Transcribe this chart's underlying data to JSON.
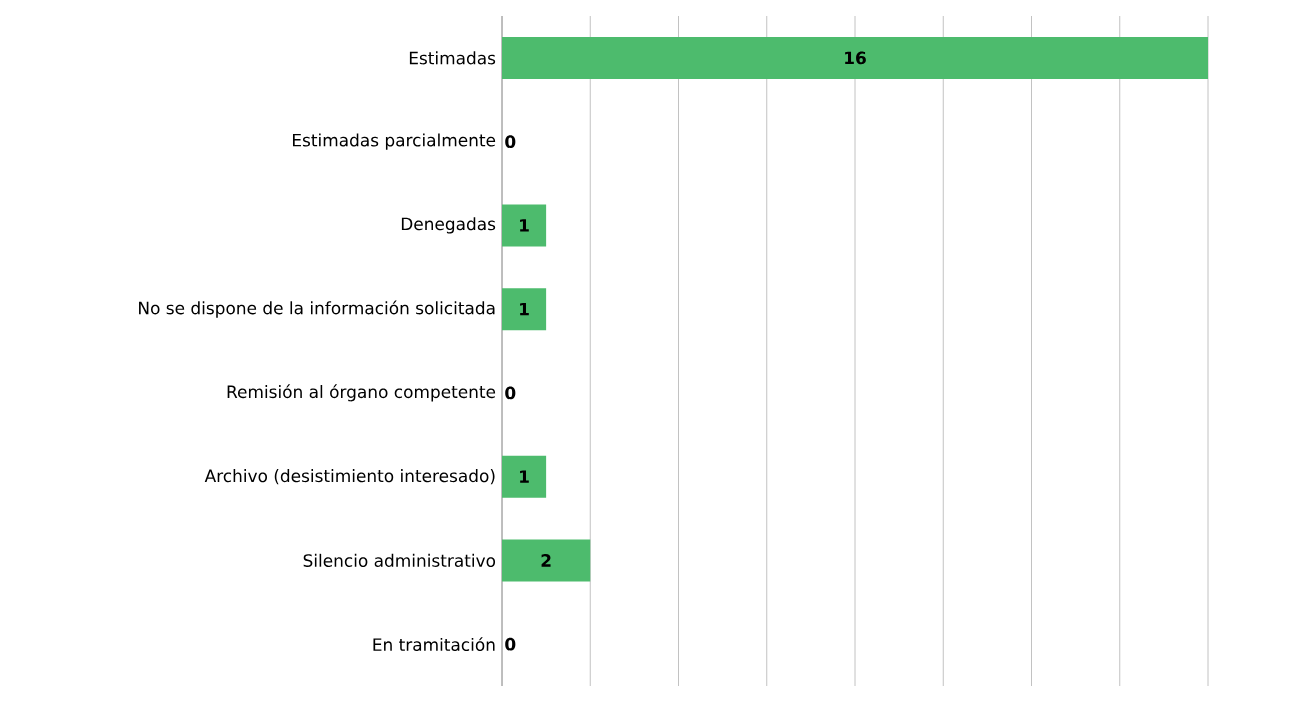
{
  "chart_data": {
    "type": "bar",
    "orientation": "horizontal",
    "categories": [
      "Estimadas",
      "Estimadas parcialmente",
      "Denegadas",
      "No se dispone de la información solicitada",
      "Remisión al órgano competente",
      "Archivo (desistimiento interesado)",
      "Silencio administrativo",
      "En tramitación"
    ],
    "values": [
      16,
      0,
      1,
      1,
      0,
      1,
      2,
      0
    ],
    "color": "#4dbb6d",
    "tick_labels": "y",
    "grid": "x",
    "data_labels": true
  }
}
